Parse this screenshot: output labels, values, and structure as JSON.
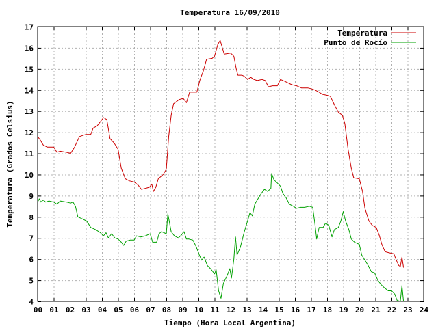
{
  "chart_data": {
    "type": "line",
    "title": "Temperatura 16/09/2010",
    "xlabel": "Tiempo (Hora Local Argentina)",
    "ylabel": "Temperatura (Grados Celsius)",
    "xlim": [
      0,
      24
    ],
    "ylim": [
      4,
      17
    ],
    "x_ticks": [
      "00",
      "01",
      "02",
      "03",
      "04",
      "05",
      "06",
      "07",
      "08",
      "09",
      "10",
      "11",
      "12",
      "13",
      "14",
      "15",
      "16",
      "17",
      "18",
      "19",
      "20",
      "21",
      "22",
      "23",
      "24"
    ],
    "y_ticks": [
      "4",
      "5",
      "6",
      "7",
      "8",
      "9",
      "10",
      "11",
      "12",
      "13",
      "14",
      "15",
      "16",
      "17"
    ],
    "grid": true,
    "legend_position": "top-right",
    "series": [
      {
        "name": "Temperatura",
        "color": "#cc0000",
        "points": [
          [
            0.0,
            11.8
          ],
          [
            0.15,
            11.65
          ],
          [
            0.35,
            11.4
          ],
          [
            0.6,
            11.3
          ],
          [
            1.0,
            11.3
          ],
          [
            1.2,
            11.05
          ],
          [
            1.4,
            11.1
          ],
          [
            1.8,
            11.05
          ],
          [
            2.05,
            11.0
          ],
          [
            2.3,
            11.3
          ],
          [
            2.6,
            11.8
          ],
          [
            3.0,
            11.9
          ],
          [
            3.3,
            11.9
          ],
          [
            3.45,
            12.2
          ],
          [
            3.7,
            12.3
          ],
          [
            3.9,
            12.5
          ],
          [
            4.1,
            12.7
          ],
          [
            4.3,
            12.6
          ],
          [
            4.5,
            11.7
          ],
          [
            4.75,
            11.5
          ],
          [
            5.0,
            11.2
          ],
          [
            5.2,
            10.3
          ],
          [
            5.45,
            9.8
          ],
          [
            5.7,
            9.7
          ],
          [
            6.0,
            9.65
          ],
          [
            6.25,
            9.5
          ],
          [
            6.45,
            9.3
          ],
          [
            6.7,
            9.35
          ],
          [
            6.95,
            9.4
          ],
          [
            7.1,
            9.55
          ],
          [
            7.2,
            9.2
          ],
          [
            7.35,
            9.4
          ],
          [
            7.5,
            9.8
          ],
          [
            7.8,
            10.0
          ],
          [
            8.0,
            10.25
          ],
          [
            8.15,
            11.8
          ],
          [
            8.3,
            12.8
          ],
          [
            8.45,
            13.35
          ],
          [
            8.8,
            13.55
          ],
          [
            9.05,
            13.6
          ],
          [
            9.25,
            13.4
          ],
          [
            9.45,
            13.9
          ],
          [
            9.9,
            13.9
          ],
          [
            10.1,
            14.5
          ],
          [
            10.3,
            14.9
          ],
          [
            10.5,
            15.45
          ],
          [
            10.85,
            15.5
          ],
          [
            11.0,
            15.6
          ],
          [
            11.2,
            16.15
          ],
          [
            11.35,
            16.35
          ],
          [
            11.5,
            15.95
          ],
          [
            11.6,
            15.7
          ],
          [
            12.0,
            15.75
          ],
          [
            12.2,
            15.6
          ],
          [
            12.35,
            15.0
          ],
          [
            12.45,
            14.7
          ],
          [
            12.7,
            14.7
          ],
          [
            12.85,
            14.65
          ],
          [
            13.05,
            14.5
          ],
          [
            13.25,
            14.6
          ],
          [
            13.45,
            14.5
          ],
          [
            13.65,
            14.45
          ],
          [
            13.95,
            14.5
          ],
          [
            14.15,
            14.45
          ],
          [
            14.35,
            14.15
          ],
          [
            14.6,
            14.2
          ],
          [
            14.9,
            14.2
          ],
          [
            15.1,
            14.5
          ],
          [
            15.4,
            14.4
          ],
          [
            15.8,
            14.25
          ],
          [
            16.1,
            14.2
          ],
          [
            16.4,
            14.1
          ],
          [
            16.8,
            14.1
          ],
          [
            17.05,
            14.05
          ],
          [
            17.25,
            14.0
          ],
          [
            17.5,
            13.9
          ],
          [
            17.7,
            13.8
          ],
          [
            18.0,
            13.75
          ],
          [
            18.2,
            13.7
          ],
          [
            18.45,
            13.3
          ],
          [
            18.7,
            12.95
          ],
          [
            18.95,
            12.8
          ],
          [
            19.1,
            12.4
          ],
          [
            19.3,
            11.2
          ],
          [
            19.5,
            10.3
          ],
          [
            19.65,
            9.85
          ],
          [
            20.0,
            9.8
          ],
          [
            20.2,
            9.2
          ],
          [
            20.35,
            8.4
          ],
          [
            20.6,
            7.8
          ],
          [
            20.8,
            7.6
          ],
          [
            21.05,
            7.5
          ],
          [
            21.25,
            7.1
          ],
          [
            21.4,
            6.7
          ],
          [
            21.6,
            6.35
          ],
          [
            21.85,
            6.3
          ],
          [
            22.15,
            6.25
          ],
          [
            22.3,
            5.95
          ],
          [
            22.45,
            5.7
          ],
          [
            22.55,
            5.65
          ],
          [
            22.65,
            6.1
          ],
          [
            22.75,
            5.6
          ]
        ]
      },
      {
        "name": "Punto de Rocío",
        "color": "#00a000",
        "points": [
          [
            0.0,
            8.7
          ],
          [
            0.1,
            8.85
          ],
          [
            0.2,
            8.7
          ],
          [
            0.35,
            8.8
          ],
          [
            0.5,
            8.7
          ],
          [
            0.7,
            8.75
          ],
          [
            1.0,
            8.7
          ],
          [
            1.2,
            8.6
          ],
          [
            1.4,
            8.75
          ],
          [
            1.8,
            8.7
          ],
          [
            2.05,
            8.65
          ],
          [
            2.2,
            8.7
          ],
          [
            2.35,
            8.5
          ],
          [
            2.5,
            8.0
          ],
          [
            2.8,
            7.9
          ],
          [
            3.05,
            7.8
          ],
          [
            3.3,
            7.5
          ],
          [
            3.6,
            7.4
          ],
          [
            3.9,
            7.25
          ],
          [
            4.1,
            7.1
          ],
          [
            4.25,
            7.25
          ],
          [
            4.4,
            7.0
          ],
          [
            4.6,
            7.2
          ],
          [
            4.8,
            7.0
          ],
          [
            5.0,
            6.95
          ],
          [
            5.2,
            6.8
          ],
          [
            5.35,
            6.65
          ],
          [
            5.5,
            6.85
          ],
          [
            5.75,
            6.9
          ],
          [
            6.0,
            6.9
          ],
          [
            6.15,
            7.1
          ],
          [
            6.4,
            7.05
          ],
          [
            6.7,
            7.1
          ],
          [
            7.0,
            7.2
          ],
          [
            7.15,
            6.8
          ],
          [
            7.4,
            6.8
          ],
          [
            7.55,
            7.2
          ],
          [
            7.7,
            7.3
          ],
          [
            8.0,
            7.2
          ],
          [
            8.1,
            8.15
          ],
          [
            8.3,
            7.3
          ],
          [
            8.5,
            7.1
          ],
          [
            8.75,
            7.0
          ],
          [
            8.95,
            7.15
          ],
          [
            9.1,
            7.3
          ],
          [
            9.25,
            6.95
          ],
          [
            9.4,
            6.95
          ],
          [
            9.65,
            6.9
          ],
          [
            9.85,
            6.6
          ],
          [
            10.05,
            6.2
          ],
          [
            10.2,
            5.95
          ],
          [
            10.35,
            6.1
          ],
          [
            10.55,
            5.7
          ],
          [
            10.75,
            5.55
          ],
          [
            11.0,
            5.3
          ],
          [
            11.1,
            5.5
          ],
          [
            11.25,
            4.5
          ],
          [
            11.4,
            4.15
          ],
          [
            11.55,
            4.85
          ],
          [
            11.8,
            5.25
          ],
          [
            11.95,
            5.55
          ],
          [
            12.05,
            5.1
          ],
          [
            12.2,
            6.0
          ],
          [
            12.3,
            7.05
          ],
          [
            12.4,
            6.2
          ],
          [
            12.6,
            6.55
          ],
          [
            12.85,
            7.3
          ],
          [
            13.05,
            7.8
          ],
          [
            13.2,
            8.2
          ],
          [
            13.35,
            8.05
          ],
          [
            13.5,
            8.6
          ],
          [
            13.7,
            8.85
          ],
          [
            13.9,
            9.1
          ],
          [
            14.1,
            9.3
          ],
          [
            14.3,
            9.2
          ],
          [
            14.5,
            9.35
          ],
          [
            14.55,
            10.05
          ],
          [
            14.7,
            9.75
          ],
          [
            14.9,
            9.6
          ],
          [
            15.1,
            9.45
          ],
          [
            15.25,
            9.1
          ],
          [
            15.45,
            8.9
          ],
          [
            15.65,
            8.6
          ],
          [
            15.9,
            8.5
          ],
          [
            16.1,
            8.4
          ],
          [
            16.35,
            8.45
          ],
          [
            16.6,
            8.45
          ],
          [
            16.9,
            8.5
          ],
          [
            17.1,
            8.45
          ],
          [
            17.25,
            7.6
          ],
          [
            17.35,
            6.95
          ],
          [
            17.5,
            7.5
          ],
          [
            17.75,
            7.5
          ],
          [
            17.9,
            7.7
          ],
          [
            18.1,
            7.6
          ],
          [
            18.3,
            7.05
          ],
          [
            18.45,
            7.4
          ],
          [
            18.7,
            7.5
          ],
          [
            18.85,
            7.8
          ],
          [
            19.0,
            8.25
          ],
          [
            19.15,
            7.8
          ],
          [
            19.35,
            7.4
          ],
          [
            19.5,
            6.95
          ],
          [
            19.7,
            6.8
          ],
          [
            20.0,
            6.7
          ],
          [
            20.15,
            6.2
          ],
          [
            20.35,
            5.95
          ],
          [
            20.55,
            5.7
          ],
          [
            20.75,
            5.4
          ],
          [
            20.95,
            5.35
          ],
          [
            21.15,
            5.0
          ],
          [
            21.35,
            4.8
          ],
          [
            21.55,
            4.65
          ],
          [
            21.8,
            4.5
          ],
          [
            22.0,
            4.5
          ],
          [
            22.2,
            4.35
          ],
          [
            22.35,
            4.05
          ],
          [
            22.55,
            4.0
          ],
          [
            22.65,
            4.75
          ],
          [
            22.75,
            4.0
          ]
        ]
      }
    ]
  }
}
